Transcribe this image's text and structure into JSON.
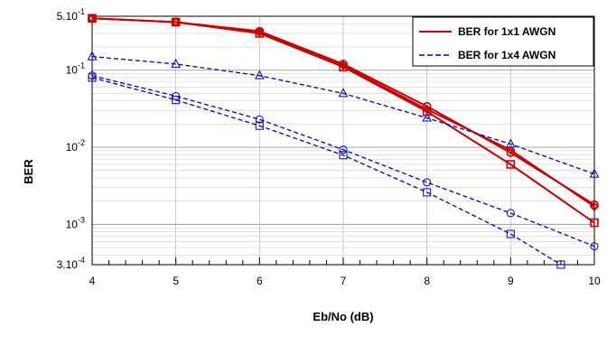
{
  "chart_data": {
    "type": "line",
    "xlabel": "Eb/No (dB)",
    "ylabel": "BER",
    "xlim": [
      4,
      10
    ],
    "ylim": [
      0.0003,
      0.5
    ],
    "y_scale": "log",
    "grid": true,
    "legend_position": "top-right",
    "x_tick_labels": [
      "4",
      "5",
      "6",
      "7",
      "8",
      "9",
      "10"
    ],
    "y_tick_labels": [
      {
        "value": 0.5,
        "mantissa": "5.10",
        "exp": "-1"
      },
      {
        "value": 0.1,
        "mantissa": "10",
        "exp": "-1"
      },
      {
        "value": 0.01,
        "mantissa": "10",
        "exp": "-2"
      },
      {
        "value": 0.001,
        "mantissa": "10",
        "exp": "-3"
      },
      {
        "value": 0.0003,
        "mantissa": "3.10",
        "exp": "-4"
      }
    ],
    "legend": [
      {
        "label": "BER for 1x1 AWGN",
        "color": "#cc0000",
        "style": "solid"
      },
      {
        "label": "BER for 1x4 AWGN",
        "color": "#0000cc",
        "style": "dashed"
      }
    ],
    "series": [
      {
        "group": "1x1",
        "color": "#cc0000",
        "style": "solid",
        "marker": "circle",
        "x": [
          4,
          5,
          6,
          7,
          8,
          9,
          10
        ],
        "y": [
          0.47,
          0.42,
          0.32,
          0.12,
          0.034,
          0.0085,
          0.0018
        ]
      },
      {
        "group": "1x1",
        "color": "#cc0000",
        "style": "solid",
        "marker": "diamond",
        "x": [
          4,
          5,
          6,
          7,
          8,
          9,
          10
        ],
        "y": [
          0.47,
          0.42,
          0.31,
          0.115,
          0.031,
          0.0092,
          0.0017
        ]
      },
      {
        "group": "1x1",
        "color": "#cc0000",
        "style": "solid",
        "marker": "square",
        "x": [
          4,
          5,
          6,
          7,
          8,
          9,
          10
        ],
        "y": [
          0.47,
          0.42,
          0.3,
          0.11,
          0.029,
          0.006,
          0.00105
        ]
      },
      {
        "group": "1x4",
        "color": "#0000cc",
        "style": "dashed",
        "marker": "triangle",
        "x": [
          4,
          5,
          6,
          7,
          8,
          9,
          10
        ],
        "y": [
          0.15,
          0.12,
          0.085,
          0.05,
          0.024,
          0.011,
          0.0045
        ]
      },
      {
        "group": "1x4",
        "color": "#0000cc",
        "style": "dashed",
        "marker": "circle",
        "x": [
          4,
          5,
          6,
          7,
          8,
          9,
          10
        ],
        "y": [
          0.085,
          0.046,
          0.023,
          0.0093,
          0.0035,
          0.0014,
          0.00052
        ]
      },
      {
        "group": "1x4",
        "color": "#0000cc",
        "style": "dashed",
        "marker": "square",
        "x": [
          4,
          5,
          6,
          7,
          8,
          9,
          9.6
        ],
        "y": [
          0.08,
          0.041,
          0.019,
          0.0079,
          0.0026,
          0.00075,
          0.0003
        ]
      }
    ]
  }
}
